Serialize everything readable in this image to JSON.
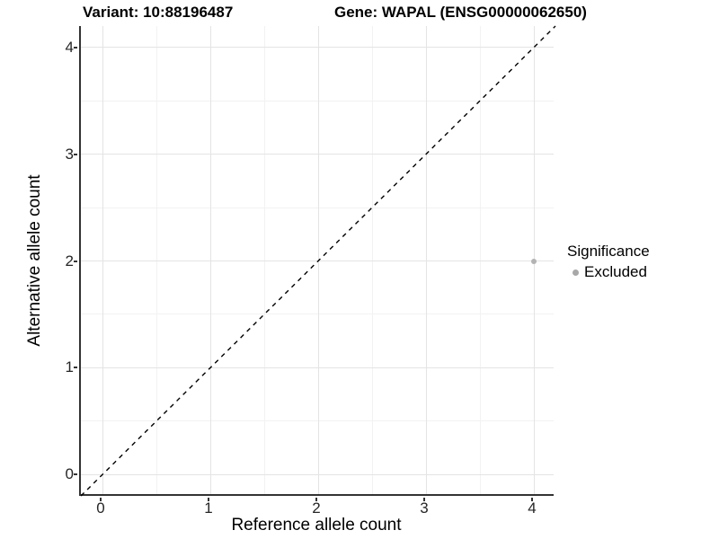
{
  "header": {
    "variant_title": "Variant: 10:88196487",
    "gene_title": "Gene: WAPAL (ENSG00000062650)"
  },
  "axes": {
    "x": {
      "label": "Reference allele count"
    },
    "y": {
      "label": "Alternative allele count"
    }
  },
  "legend": {
    "title": "Significance",
    "items": [
      {
        "label": "Excluded",
        "color": "#a8a8a8",
        "marker": "circle-icon"
      }
    ]
  },
  "chart_data": {
    "type": "scatter",
    "title_left": "Variant: 10:88196487",
    "title_right": "Gene: WAPAL (ENSG00000062650)",
    "xlabel": "Reference allele count",
    "ylabel": "Alternative allele count",
    "xlim": [
      -0.2,
      4.2
    ],
    "ylim": [
      -0.2,
      4.2
    ],
    "x_ticks": [
      0,
      1,
      2,
      3,
      4
    ],
    "y_ticks": [
      0,
      1,
      2,
      3,
      4
    ],
    "grid": "major and minor gridlines, light gray on white",
    "legend_position": "right-center",
    "series": [
      {
        "name": "Excluded",
        "color": "#b3b3b3",
        "points": [
          [
            4,
            2
          ]
        ]
      }
    ],
    "reference_line": {
      "meaning": "identity line y = x",
      "style": "dashed",
      "color": "#000000",
      "from": [
        -0.2,
        -0.2
      ],
      "to": [
        4.2,
        4.2
      ]
    }
  }
}
